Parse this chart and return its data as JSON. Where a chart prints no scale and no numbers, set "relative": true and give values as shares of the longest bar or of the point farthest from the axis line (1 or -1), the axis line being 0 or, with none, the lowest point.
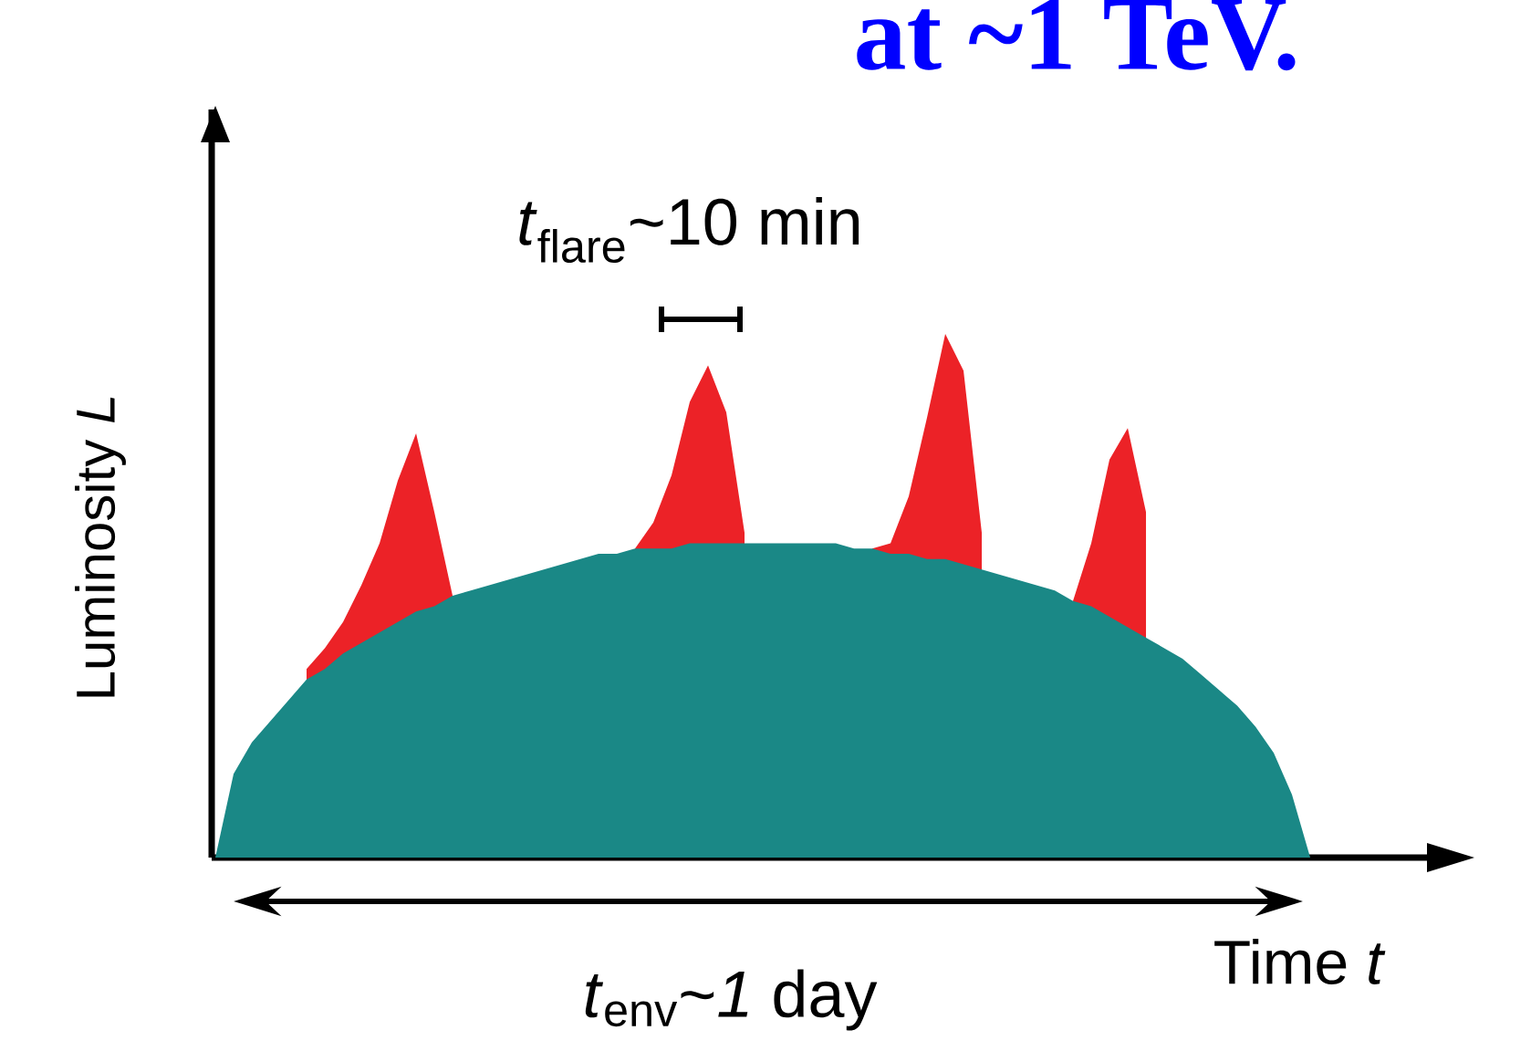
{
  "chart_data": {
    "type": "area",
    "title": "at ~1 TeV.",
    "xlabel": "Time *t*",
    "ylabel": "Luminosity *L*",
    "annotations": [
      "*t*$_{flare}$~10 min",
      "*t*$_{env}$~*1* day"
    ],
    "relative": true,
    "categories": [
      null,
      null,
      null,
      null,
      null,
      null,
      null,
      null,
      null,
      null,
      null,
      null,
      null,
      null,
      null,
      null,
      null,
      null,
      null,
      null,
      null,
      null,
      null,
      null,
      null,
      null,
      null,
      null,
      null,
      null,
      null,
      null,
      null,
      null,
      null,
      null,
      null,
      null,
      null,
      null,
      null,
      null,
      null,
      null,
      null,
      null,
      null,
      null,
      null,
      null,
      null,
      null,
      null,
      null,
      null,
      null,
      null,
      null,
      null,
      null,
      null,
      null,
      null,
      null,
      null,
      null,
      null,
      null
    ],
    "series": [
      {
        "color": "#ec2227",
        "values": [
          null,
          null,
          null,
          null,
          null,
          0.36,
          0.4,
          0.45,
          0.52,
          0.6,
          0.72,
          0.81,
          0.66,
          0.5,
          null,
          null,
          null,
          null,
          null,
          null,
          null,
          null,
          null,
          0.59,
          0.64,
          0.73,
          0.87,
          0.94,
          0.85,
          0.62,
          null,
          null,
          null,
          null,
          null,
          null,
          0.59,
          0.6,
          0.69,
          0.84,
          1.0,
          0.93,
          0.62,
          null,
          null,
          null,
          null,
          0.49,
          0.6,
          0.76,
          0.82,
          0.66,
          null,
          null,
          null,
          null,
          null,
          null,
          null,
          null,
          null,
          null,
          null,
          null,
          null,
          null,
          null,
          null
        ]
      },
      {
        "color": "#1a8886",
        "values": [
          0,
          0.16,
          0.22,
          0.26,
          0.3,
          0.34,
          0.36,
          0.39,
          0.41,
          0.43,
          0.45,
          0.47,
          0.48,
          0.5,
          0.51,
          0.52,
          0.53,
          0.54,
          0.55,
          0.56,
          0.57,
          0.58,
          0.58,
          0.59,
          0.59,
          0.59,
          0.6,
          0.6,
          0.6,
          0.6,
          0.6,
          0.6,
          0.6,
          0.6,
          0.6,
          0.59,
          0.59,
          0.58,
          0.58,
          0.57,
          0.57,
          0.56,
          0.55,
          0.54,
          0.53,
          0.52,
          0.51,
          0.49,
          0.48,
          0.46,
          0.44,
          0.42,
          0.4,
          0.38,
          0.35,
          0.32,
          0.29,
          0.25,
          0.2,
          0.12,
          0,
          null,
          null,
          null,
          null,
          null,
          null,
          null
        ]
      }
    ]
  }
}
